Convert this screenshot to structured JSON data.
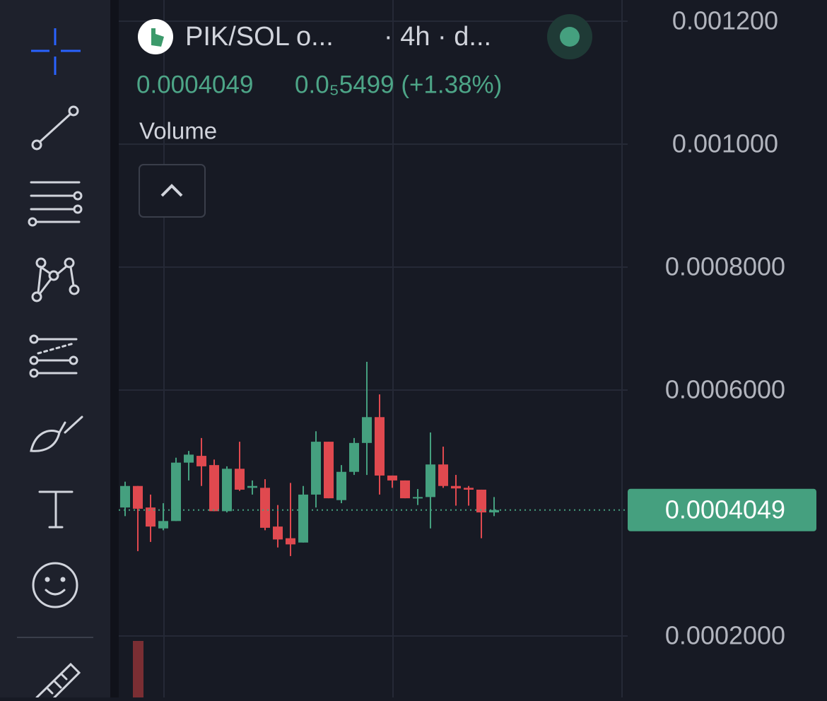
{
  "header": {
    "symbol": "PIK/SOL o...",
    "interval": "· 4h · d...",
    "price": "0.0004049",
    "change": "0.0₅5499 (+1.38%)",
    "volume_label": "Volume"
  },
  "chart_data": {
    "type": "candlestick",
    "up_color": "#45a07f",
    "down_color": "#e0494f",
    "open": [
      0.000409,
      0.000444,
      0.000409,
      0.000375,
      0.000387,
      0.000482,
      0.000493,
      0.000478,
      0.000403,
      0.000472,
      0.000441,
      0.000441,
      0.000378,
      0.000359,
      0.000352,
      0.00043,
      0.000516,
      0.000421,
      0.000467,
      0.000514,
      0.000556,
      0.000461,
      0.000453,
      0.000424,
      0.000426,
      0.000479,
      0.000444,
      0.000441,
      0.000438,
      0.000401
    ],
    "high": [
      0.000451,
      0.000444,
      0.00043,
      0.000416,
      0.00049,
      0.000501,
      0.000522,
      0.000487,
      0.000476,
      0.000516,
      0.000453,
      0.000455,
      0.000413,
      0.000449,
      0.000444,
      0.000533,
      0.000516,
      0.000478,
      0.000522,
      0.000646,
      0.000593,
      0.000461,
      0.000453,
      0.000439,
      0.000531,
      0.000508,
      0.000462,
      0.000444,
      0.000438,
      0.000426
    ],
    "low": [
      0.000395,
      0.000338,
      0.000353,
      0.000372,
      0.000387,
      0.000453,
      0.000444,
      0.000403,
      0.000401,
      0.000436,
      0.00043,
      0.000372,
      0.000344,
      0.00033,
      0.000352,
      0.000409,
      0.000424,
      0.000416,
      0.000462,
      0.000462,
      0.00043,
      0.000441,
      0.000424,
      0.000413,
      0.000375,
      0.000441,
      0.000412,
      0.000412,
      0.000359,
      0.000395
    ],
    "close": [
      0.000444,
      0.000407,
      0.000378,
      0.000387,
      0.000482,
      0.000495,
      0.000476,
      0.000403,
      0.000472,
      0.000438,
      0.000444,
      0.000376,
      0.000357,
      0.000349,
      0.00043,
      0.000516,
      0.000424,
      0.000467,
      0.000514,
      0.000556,
      0.000461,
      0.000453,
      0.000424,
      0.000426,
      0.000479,
      0.000444,
      0.00044,
      0.000438,
      0.000401,
      0.0004049
    ],
    "last_price": 0.0004049,
    "ylim": [
      0.0001,
      0.0012345
    ],
    "yticks": [
      {
        "value": 0.0012,
        "label": "0.001200"
      },
      {
        "value": 0.001,
        "label": "0.001000"
      },
      {
        "value": 0.0008,
        "label": "0.0008000"
      },
      {
        "value": 0.0006,
        "label": "0.0006000"
      },
      {
        "value": 0.0002,
        "label": "0.0002000"
      }
    ],
    "grid": true
  }
}
